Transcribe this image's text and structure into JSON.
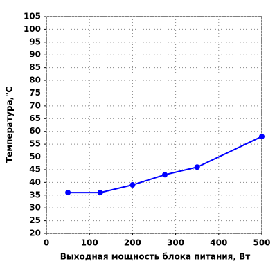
{
  "chart_data": {
    "type": "line",
    "x_label": "Выходная мощность блока питания, Вт",
    "y_label": "Температура,°C",
    "x": [
      50,
      125,
      200,
      275,
      350,
      500
    ],
    "series": [
      {
        "color": "#0000ff",
        "values": [
          36,
          36,
          39,
          43,
          46,
          58
        ]
      }
    ],
    "xlim": [
      0,
      500
    ],
    "xticks": [
      0,
      100,
      200,
      300,
      400,
      500
    ],
    "ylim": [
      20,
      105
    ],
    "yticks": [
      20,
      25,
      30,
      35,
      40,
      45,
      50,
      55,
      60,
      65,
      70,
      75,
      80,
      85,
      90,
      95,
      100,
      105
    ],
    "grid": true
  }
}
